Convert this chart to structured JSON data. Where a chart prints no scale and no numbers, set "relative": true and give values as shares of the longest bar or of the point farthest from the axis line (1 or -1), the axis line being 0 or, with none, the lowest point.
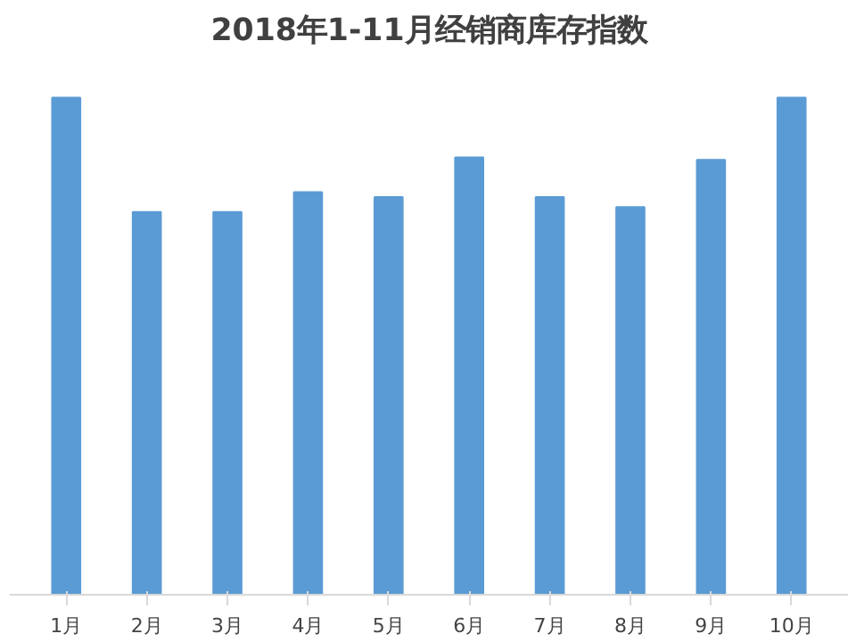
{
  "chart_data": {
    "type": "bar",
    "title": "2018年1-11月经销商库存指数",
    "relative": true,
    "categories": [
      "1月",
      "2月",
      "3月",
      "4月",
      "5月",
      "6月",
      "7月",
      "8月",
      "9月",
      "10月"
    ],
    "values": [
      1,
      0.77,
      0.77,
      0.81,
      0.8,
      0.88,
      0.8,
      0.78,
      0.875,
      1
    ],
    "color": "#5b9bd5",
    "grid": false
  }
}
